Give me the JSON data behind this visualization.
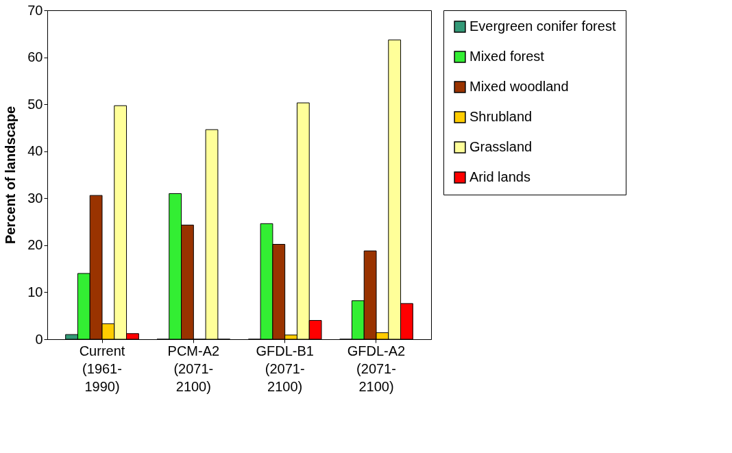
{
  "chart_data": {
    "type": "bar",
    "ylabel": "Percent of landscape",
    "categories": [
      "Current (1961-1990)",
      "PCM-A2 (2071-2100)",
      "GFDL-B1 (2071-2100)",
      "GFDL-A2 (2071-2100)"
    ],
    "series": [
      {
        "name": "Evergreen conifer forest",
        "color": "#339977",
        "values": [
          1.0,
          0,
          0,
          0
        ]
      },
      {
        "name": "Mixed forest",
        "color": "#33ee33",
        "values": [
          14.0,
          31.0,
          24.6,
          8.2
        ]
      },
      {
        "name": "Mixed woodland",
        "color": "#993300",
        "values": [
          30.6,
          24.3,
          20.2,
          18.8
        ]
      },
      {
        "name": "Shrubland",
        "color": "#ffcc00",
        "values": [
          3.3,
          0,
          0.9,
          1.4
        ]
      },
      {
        "name": "Grassland",
        "color": "#ffff99",
        "values": [
          49.7,
          44.6,
          50.3,
          63.7
        ]
      },
      {
        "name": "Arid lands",
        "color": "#ff0000",
        "values": [
          1.2,
          0,
          4.0,
          7.6
        ]
      }
    ],
    "ylim": [
      0,
      70
    ],
    "yticks": [
      0,
      10,
      20,
      30,
      40,
      50,
      60,
      70
    ],
    "grid": false,
    "legend": "right"
  }
}
